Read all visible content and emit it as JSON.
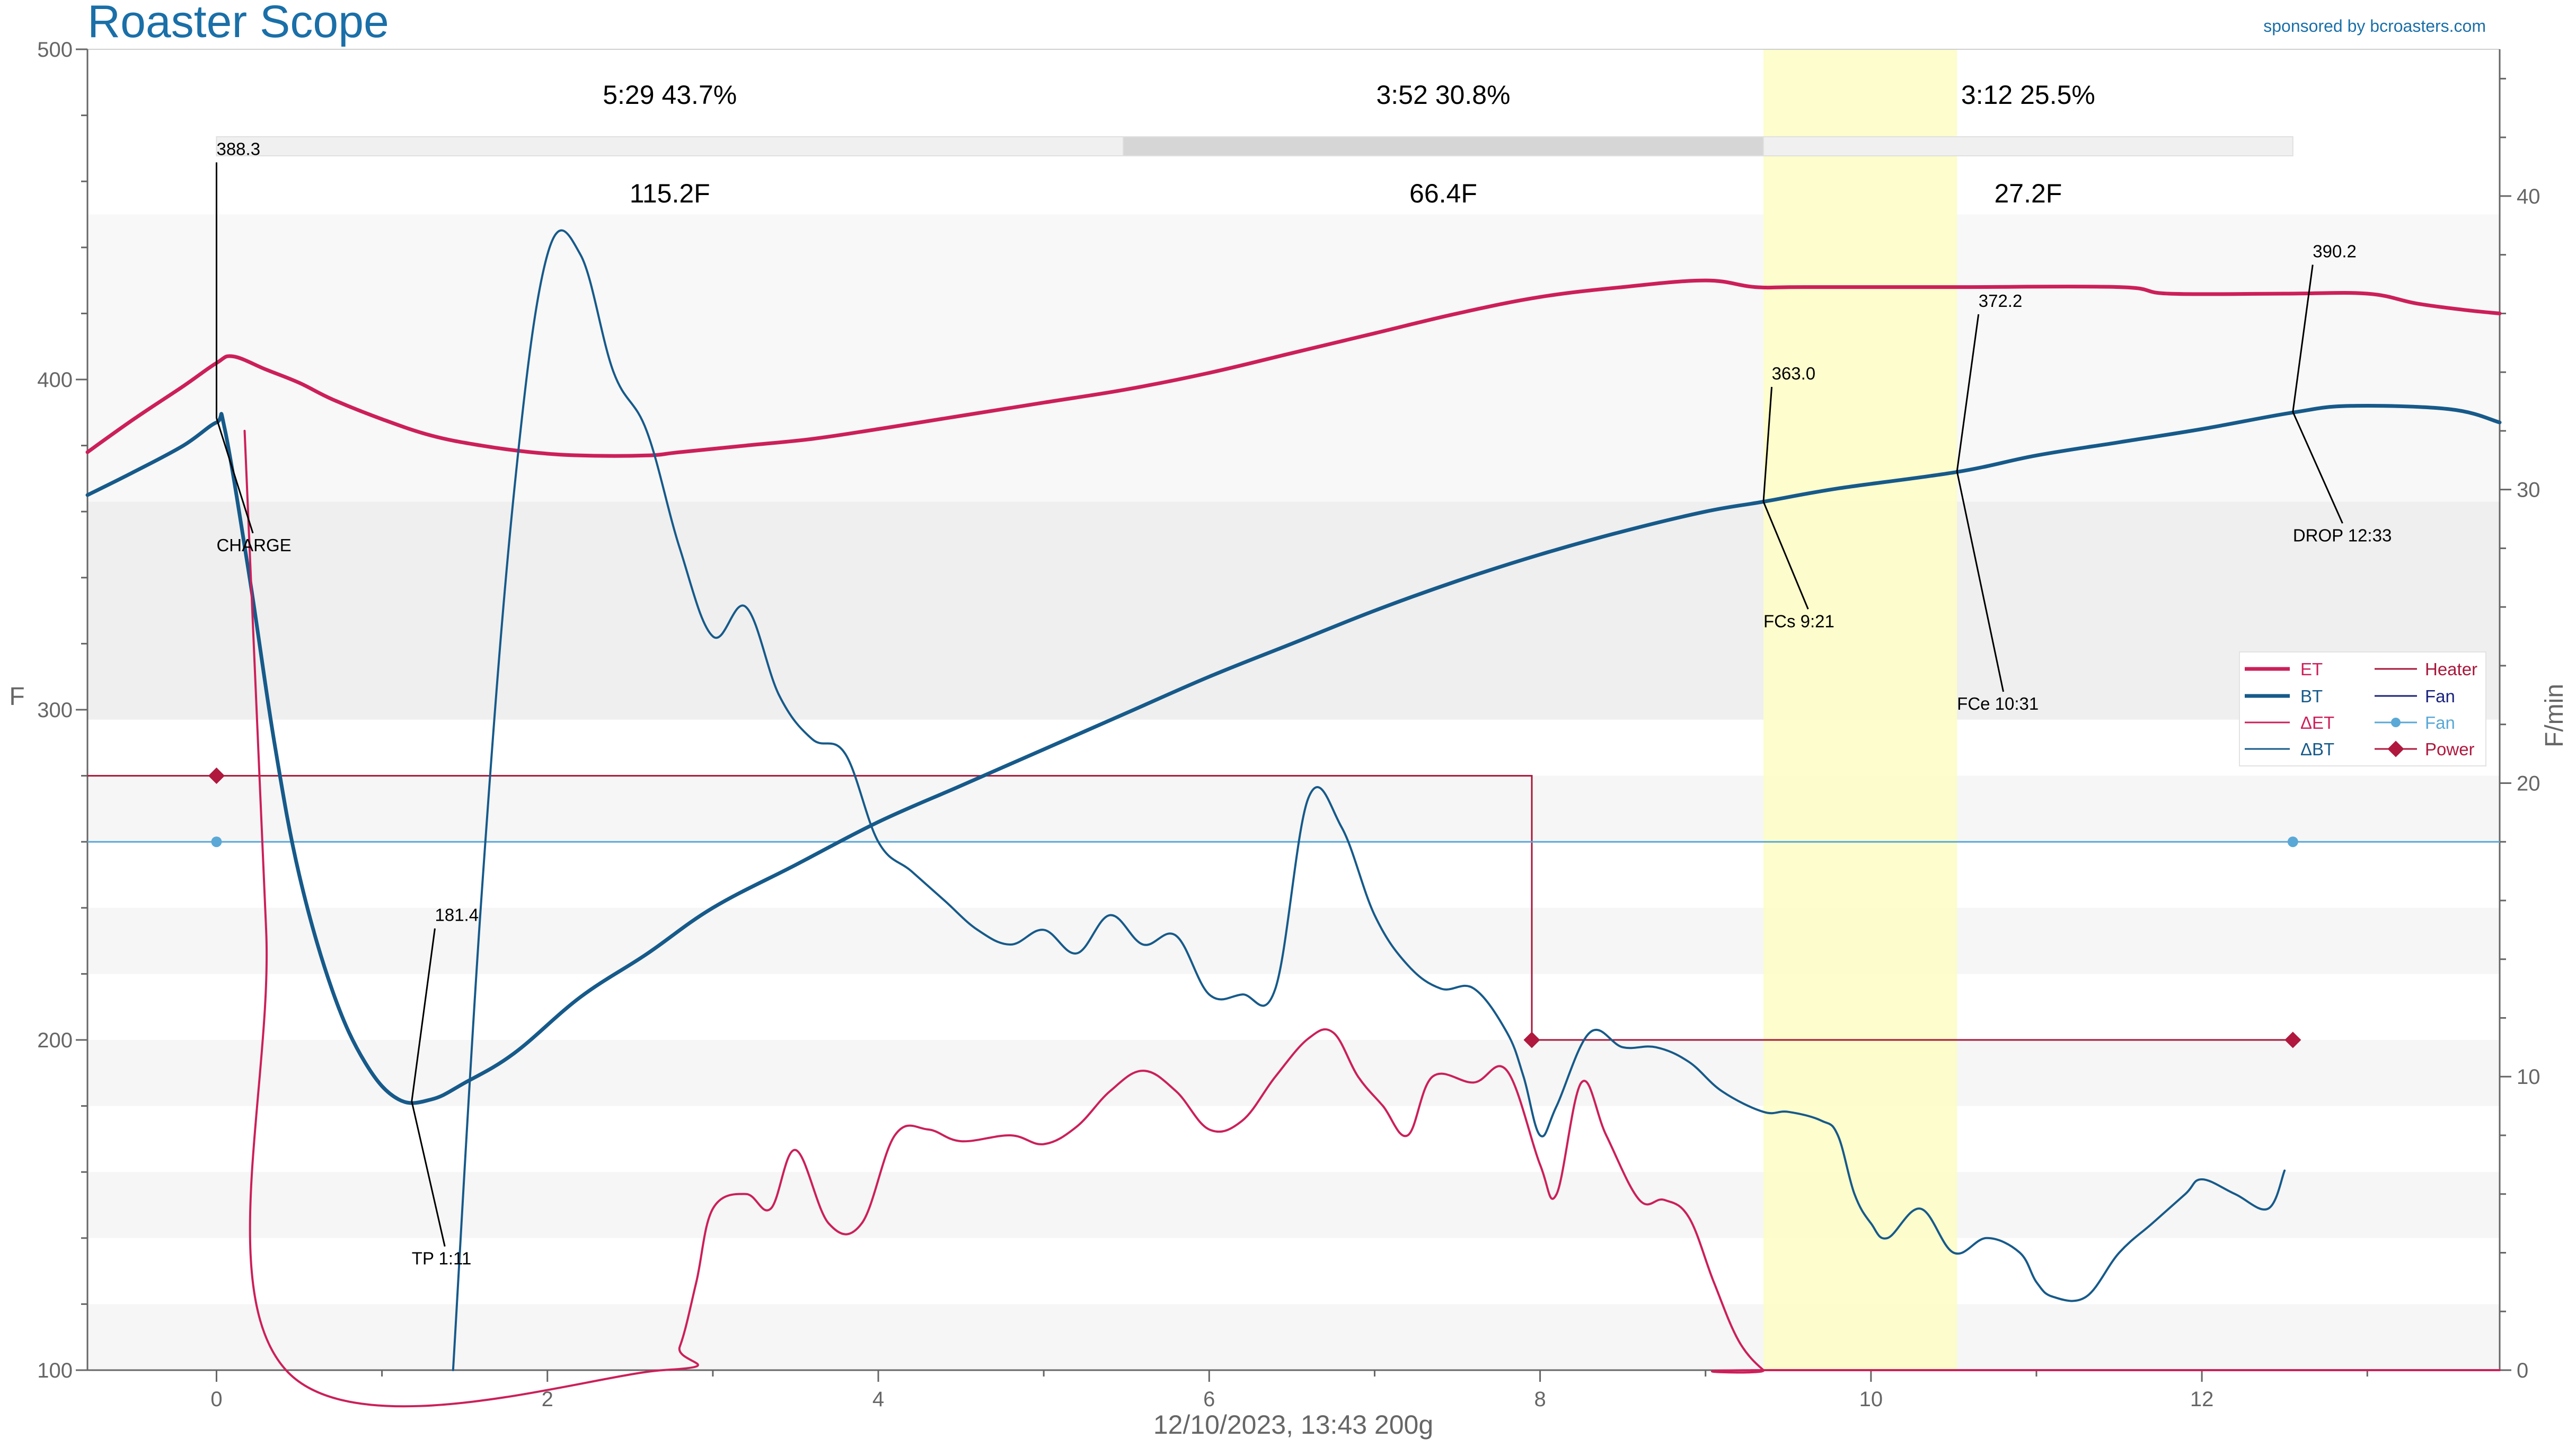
{
  "header": {
    "title": "Roaster Scope",
    "sponsor": "sponsored by bcroasters.com",
    "footer": "12/10/2023, 13:43   200g"
  },
  "colors": {
    "title": "#1a6fa8",
    "et": "#cc1f5a",
    "bt": "#165a8a",
    "delta_et": "#cc1f5a",
    "delta_bt": "#165a8a",
    "heater": "#a8173a",
    "fan_setting": "#1a237e",
    "fan": "#5aa8d6",
    "power": "#b0183e",
    "fc_band": "#fdfdc8",
    "axis": "#666666"
  },
  "chart_data": {
    "type": "line",
    "xlim": [
      -0.78,
      13.8
    ],
    "x_ticks": [
      0,
      2,
      4,
      6,
      8,
      10,
      12
    ],
    "y_left": {
      "label": "F",
      "lim": [
        100,
        500
      ],
      "ticks": [
        100,
        200,
        300,
        400,
        500
      ]
    },
    "y_right": {
      "label": "F/min",
      "lim": [
        0,
        45
      ],
      "ticks": [
        0,
        10,
        20,
        30,
        40
      ]
    },
    "phases": [
      {
        "duration": "5:29",
        "percent": "43.7%",
        "rise": "115.2F",
        "start": 0,
        "end": 5.48
      },
      {
        "duration": "3:52",
        "percent": "30.8%",
        "rise": "66.4F",
        "start": 5.48,
        "end": 9.35
      },
      {
        "duration": "3:12",
        "percent": "25.5%",
        "rise": "27.2F",
        "start": 9.35,
        "end": 12.55
      }
    ],
    "first_crack_band": {
      "start": 9.35,
      "end": 10.52
    },
    "events": [
      {
        "label": "CHARGE",
        "value": "388.3",
        "time": 0,
        "temp": 388.3
      },
      {
        "label": "TP 1:11",
        "value": "181.4",
        "time": 1.18,
        "temp": 181.4
      },
      {
        "label": "FCs 9:21",
        "value": "363.0",
        "time": 9.35,
        "temp": 363.0
      },
      {
        "label": "FCe 10:31",
        "value": "372.2",
        "time": 10.52,
        "temp": 372.2
      },
      {
        "label": "DROP 12:33",
        "value": "390.2",
        "time": 12.55,
        "temp": 390.2
      }
    ],
    "legend": {
      "placement": "right",
      "entries": [
        "ET",
        "BT",
        "ΔET",
        "ΔBT",
        "Heater",
        "Fan",
        "Fan",
        "Power"
      ]
    },
    "series": [
      {
        "name": "ET",
        "axis": "left",
        "points": [
          [
            -0.78,
            378
          ],
          [
            -0.5,
            388
          ],
          [
            -0.2,
            398
          ],
          [
            0,
            405
          ],
          [
            0.1,
            407
          ],
          [
            0.3,
            403
          ],
          [
            0.5,
            399
          ],
          [
            0.7,
            394
          ],
          [
            1.0,
            388
          ],
          [
            1.3,
            383
          ],
          [
            1.6,
            380
          ],
          [
            1.9,
            378
          ],
          [
            2.2,
            377
          ],
          [
            2.6,
            377
          ],
          [
            2.8,
            378
          ],
          [
            3.2,
            380
          ],
          [
            3.6,
            382
          ],
          [
            4.0,
            385
          ],
          [
            4.5,
            389
          ],
          [
            5.0,
            393
          ],
          [
            5.5,
            397
          ],
          [
            6.0,
            402
          ],
          [
            6.5,
            408
          ],
          [
            7.0,
            414
          ],
          [
            7.5,
            420
          ],
          [
            8.0,
            425
          ],
          [
            8.5,
            428
          ],
          [
            9.0,
            430
          ],
          [
            9.3,
            428
          ],
          [
            9.6,
            428
          ],
          [
            10.5,
            428
          ],
          [
            11.5,
            428
          ],
          [
            11.8,
            426
          ],
          [
            12.5,
            426
          ],
          [
            13.0,
            426
          ],
          [
            13.3,
            423
          ],
          [
            13.6,
            421
          ],
          [
            13.8,
            420
          ]
        ]
      },
      {
        "name": "BT",
        "axis": "left",
        "points": [
          [
            -0.78,
            365
          ],
          [
            -0.5,
            372
          ],
          [
            -0.2,
            380
          ],
          [
            0,
            387
          ],
          [
            0.05,
            385
          ],
          [
            0.2,
            340
          ],
          [
            0.35,
            290
          ],
          [
            0.5,
            250
          ],
          [
            0.7,
            215
          ],
          [
            0.9,
            193
          ],
          [
            1.1,
            182
          ],
          [
            1.3,
            182
          ],
          [
            1.5,
            187
          ],
          [
            1.8,
            196
          ],
          [
            2.2,
            213
          ],
          [
            2.6,
            226
          ],
          [
            3.0,
            240
          ],
          [
            3.5,
            253
          ],
          [
            4.0,
            266
          ],
          [
            4.5,
            277
          ],
          [
            5.0,
            288
          ],
          [
            5.5,
            299
          ],
          [
            6.0,
            310
          ],
          [
            6.5,
            320
          ],
          [
            7.0,
            330
          ],
          [
            7.5,
            339
          ],
          [
            8.0,
            347
          ],
          [
            8.5,
            354
          ],
          [
            9.0,
            360
          ],
          [
            9.35,
            363
          ],
          [
            9.8,
            367
          ],
          [
            10.52,
            372
          ],
          [
            11.0,
            377
          ],
          [
            11.5,
            381
          ],
          [
            12.0,
            385
          ],
          [
            12.55,
            390
          ],
          [
            12.9,
            392
          ],
          [
            13.5,
            391
          ],
          [
            13.8,
            387
          ]
        ]
      },
      {
        "name": "ΔET",
        "axis": "right",
        "points": [
          [
            0.17,
            32
          ],
          [
            0.2,
            28
          ],
          [
            0.3,
            15
          ],
          [
            0.42,
            0
          ],
          [
            2.7,
            0
          ],
          [
            2.8,
            0.8
          ],
          [
            2.9,
            3
          ],
          [
            3.0,
            5.5
          ],
          [
            3.2,
            6
          ],
          [
            3.35,
            5.5
          ],
          [
            3.5,
            7.5
          ],
          [
            3.7,
            5
          ],
          [
            3.9,
            5
          ],
          [
            4.1,
            8
          ],
          [
            4.3,
            8.2
          ],
          [
            4.5,
            7.8
          ],
          [
            4.8,
            8
          ],
          [
            5.0,
            7.7
          ],
          [
            5.2,
            8.3
          ],
          [
            5.4,
            9.5
          ],
          [
            5.6,
            10.2
          ],
          [
            5.8,
            9.5
          ],
          [
            6.0,
            8.2
          ],
          [
            6.2,
            8.5
          ],
          [
            6.4,
            10
          ],
          [
            6.6,
            11.3
          ],
          [
            6.75,
            11.5
          ],
          [
            6.9,
            10
          ],
          [
            7.05,
            9
          ],
          [
            7.2,
            8
          ],
          [
            7.35,
            10
          ],
          [
            7.6,
            9.8
          ],
          [
            7.8,
            10.2
          ],
          [
            8.0,
            7
          ],
          [
            8.1,
            6
          ],
          [
            8.25,
            9.8
          ],
          [
            8.4,
            8
          ],
          [
            8.6,
            5.8
          ],
          [
            8.75,
            5.8
          ],
          [
            8.9,
            5.2
          ],
          [
            9.05,
            3
          ],
          [
            9.2,
            1
          ],
          [
            9.35,
            0
          ],
          [
            9.4,
            0
          ],
          [
            13.8,
            0
          ]
        ]
      },
      {
        "name": "ΔBT",
        "axis": "right",
        "points": [
          [
            1.43,
            0
          ],
          [
            1.6,
            16
          ],
          [
            1.8,
            30
          ],
          [
            2.0,
            38
          ],
          [
            2.2,
            38
          ],
          [
            2.4,
            34
          ],
          [
            2.6,
            32
          ],
          [
            2.8,
            28
          ],
          [
            3.0,
            25
          ],
          [
            3.2,
            26
          ],
          [
            3.4,
            23
          ],
          [
            3.6,
            21.5
          ],
          [
            3.8,
            21
          ],
          [
            4.0,
            18
          ],
          [
            4.2,
            17
          ],
          [
            4.4,
            16
          ],
          [
            4.6,
            15
          ],
          [
            4.8,
            14.5
          ],
          [
            5.0,
            15
          ],
          [
            5.2,
            14.2
          ],
          [
            5.4,
            15.5
          ],
          [
            5.6,
            14.5
          ],
          [
            5.8,
            14.8
          ],
          [
            6.0,
            12.8
          ],
          [
            6.2,
            12.8
          ],
          [
            6.4,
            13
          ],
          [
            6.6,
            19.5
          ],
          [
            6.8,
            18.5
          ],
          [
            7.0,
            15.5
          ],
          [
            7.2,
            13.8
          ],
          [
            7.4,
            13
          ],
          [
            7.6,
            13
          ],
          [
            7.8,
            11.5
          ],
          [
            7.9,
            10
          ],
          [
            8.0,
            8
          ],
          [
            8.1,
            9
          ],
          [
            8.3,
            11.5
          ],
          [
            8.5,
            11
          ],
          [
            8.7,
            11
          ],
          [
            8.9,
            10.5
          ],
          [
            9.1,
            9.5
          ],
          [
            9.35,
            8.8
          ],
          [
            9.5,
            8.8
          ],
          [
            9.7,
            8.5
          ],
          [
            9.8,
            8
          ],
          [
            9.9,
            6
          ],
          [
            10.0,
            5
          ],
          [
            10.1,
            4.5
          ],
          [
            10.3,
            5.5
          ],
          [
            10.5,
            4
          ],
          [
            10.7,
            4.5
          ],
          [
            10.9,
            4
          ],
          [
            11.0,
            3
          ],
          [
            11.1,
            2.5
          ],
          [
            11.3,
            2.5
          ],
          [
            11.5,
            4
          ],
          [
            11.7,
            5
          ],
          [
            11.9,
            6
          ],
          [
            12.0,
            6.5
          ],
          [
            12.2,
            6
          ],
          [
            12.4,
            5.5
          ],
          [
            12.5,
            6.8
          ]
        ]
      }
    ],
    "heater": {
      "name": "Heater",
      "axis": "left",
      "points": [
        [
          -0.78,
          280
        ],
        [
          7.95,
          280
        ],
        [
          7.95,
          200
        ],
        [
          12.55,
          200
        ]
      ]
    },
    "fan": {
      "name": "Fan",
      "axis": "left",
      "points": [
        [
          -0.78,
          260
        ],
        [
          13.8,
          260
        ]
      ]
    },
    "power": {
      "name": "Power",
      "axis": "left",
      "points": [
        [
          0,
          280
        ],
        [
          7.95,
          200
        ],
        [
          12.55,
          200
        ]
      ]
    },
    "fan_markers": [
      [
        0,
        260
      ],
      [
        12.55,
        260
      ]
    ]
  }
}
